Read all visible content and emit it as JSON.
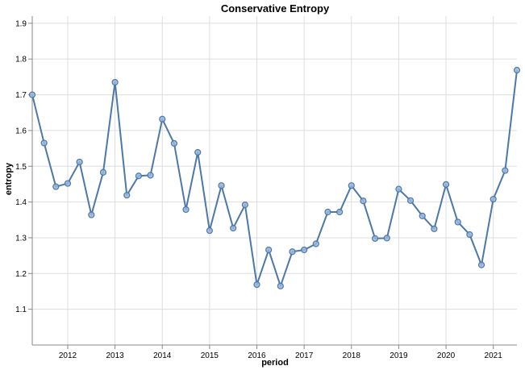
{
  "colors": {
    "line": "#4c78a8",
    "point_fill": "#9ab6dc",
    "grid": "#dddddd"
  },
  "chart_data": {
    "type": "line",
    "title": "Conservative Entropy",
    "xlabel": "period",
    "ylabel": "entropy",
    "xlim": [
      2011.25,
      2021.5
    ],
    "ylim": [
      1.0,
      1.92
    ],
    "x_ticks": [
      2012,
      2013,
      2014,
      2015,
      2016,
      2017,
      2018,
      2019,
      2020,
      2021
    ],
    "x_tick_labels": [
      "2012",
      "2013",
      "2014",
      "2015",
      "2016",
      "2017",
      "2018",
      "2019",
      "2020",
      "2021"
    ],
    "y_ticks": [
      1.1,
      1.2,
      1.3,
      1.4,
      1.5,
      1.6,
      1.7,
      1.8,
      1.9
    ],
    "y_tick_labels": [
      "1.1",
      "1.2",
      "1.3",
      "1.4",
      "1.5",
      "1.6",
      "1.7",
      "1.8",
      "1.9"
    ],
    "grid": true,
    "markers": true,
    "series": [
      {
        "x": [
          2011.25,
          2011.5,
          2011.75,
          2012.0,
          2012.25,
          2012.5,
          2012.75,
          2013.0,
          2013.25,
          2013.5,
          2013.75,
          2014.0,
          2014.25,
          2014.5,
          2014.75,
          2015.0,
          2015.25,
          2015.5,
          2015.75,
          2016.0,
          2016.25,
          2016.5,
          2016.75,
          2017.0,
          2017.25,
          2017.5,
          2017.75,
          2018.0,
          2018.25,
          2018.5,
          2018.75,
          2019.0,
          2019.25,
          2019.5,
          2019.75,
          2020.0,
          2020.25,
          2020.5,
          2020.75,
          2021.0,
          2021.25,
          2021.5
        ],
        "values": [
          1.7,
          1.565,
          1.443,
          1.452,
          1.512,
          1.364,
          1.483,
          1.735,
          1.419,
          1.473,
          1.475,
          1.632,
          1.564,
          1.379,
          1.539,
          1.32,
          1.446,
          1.327,
          1.392,
          1.169,
          1.266,
          1.165,
          1.261,
          1.266,
          1.283,
          1.372,
          1.372,
          1.446,
          1.403,
          1.298,
          1.299,
          1.436,
          1.404,
          1.361,
          1.325,
          1.449,
          1.344,
          1.309,
          1.224,
          1.408,
          1.488,
          1.769
        ]
      }
    ]
  }
}
